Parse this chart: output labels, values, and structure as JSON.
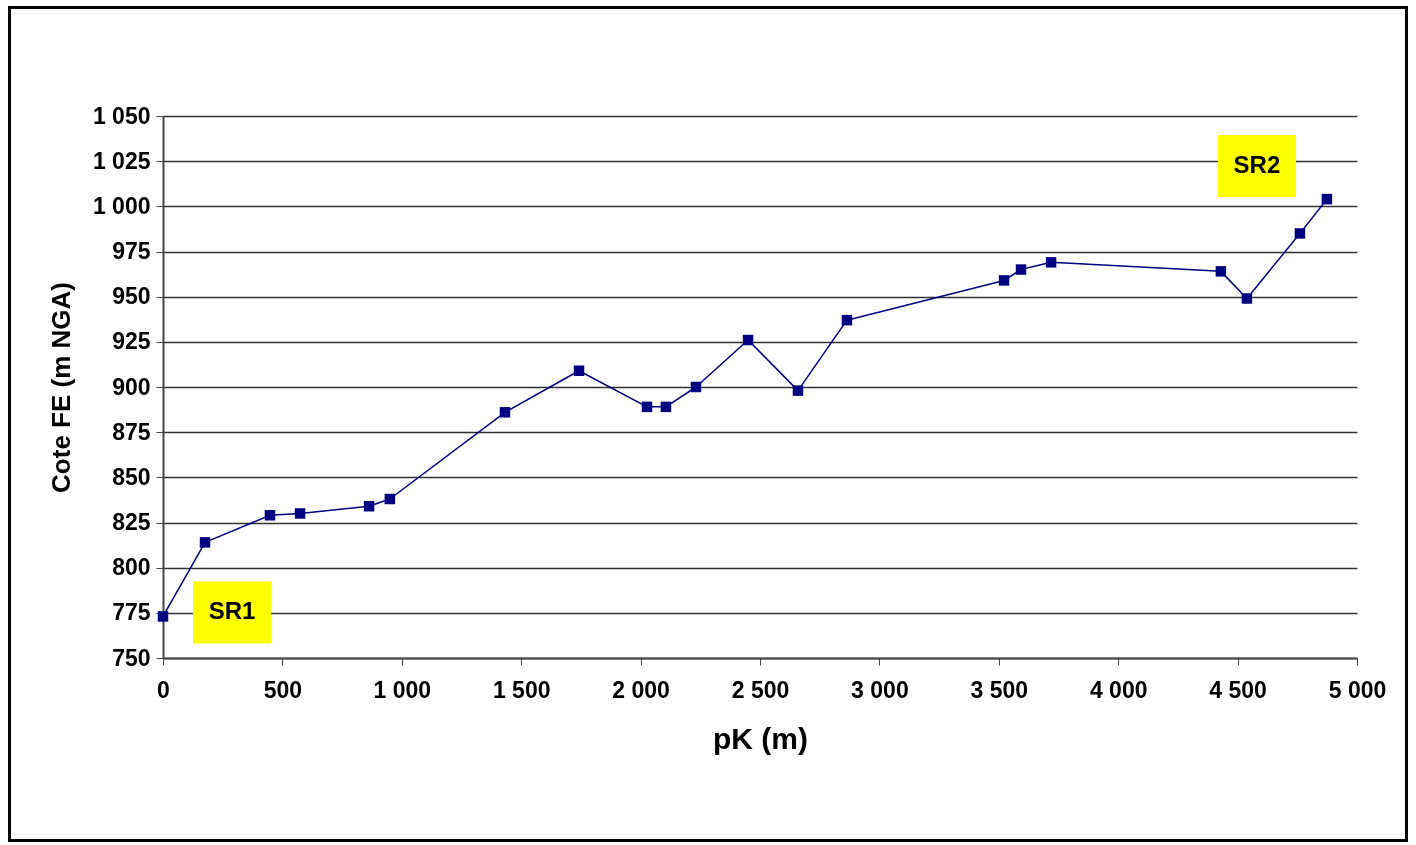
{
  "chart_data": {
    "type": "line",
    "xlabel": "pK (m)",
    "ylabel": "Cote FE  (m NGA)",
    "x": [
      0,
      176,
      448,
      574,
      863,
      950,
      1432,
      1742,
      2027,
      2106,
      2232,
      2450,
      2659,
      2864,
      3522,
      3593,
      3719,
      4430,
      4539,
      4761,
      4874
    ],
    "series": [
      {
        "color": "#000080",
        "values": [
          773,
          814,
          829,
          830,
          834,
          838,
          886,
          909,
          889,
          889,
          900,
          926,
          898,
          937,
          959,
          965,
          969,
          964,
          949,
          985,
          1004
        ]
      }
    ],
    "xlim": [
      0,
      5000
    ],
    "ylim": [
      750,
      1050
    ],
    "xticks": [
      0,
      500,
      {
        "value": 1000,
        "label": "1 000"
      },
      {
        "value": 1500,
        "label": "1 500"
      },
      {
        "value": 2000,
        "label": "2 000"
      },
      {
        "value": 2500,
        "label": "2 500"
      },
      {
        "value": 3000,
        "label": "3 000"
      },
      {
        "value": 3500,
        "label": "3 500"
      },
      {
        "value": 4000,
        "label": "4 000"
      },
      {
        "value": 4500,
        "label": "4 500"
      },
      {
        "value": 5000,
        "label": "5 000"
      }
    ],
    "yticks": [
      750,
      775,
      800,
      825,
      850,
      875,
      900,
      925,
      950,
      975,
      {
        "value": 1000,
        "label": "1 000"
      },
      {
        "value": 1025,
        "label": "1 025"
      },
      {
        "value": 1050,
        "label": "1 050"
      }
    ],
    "grid": "y",
    "marker": "square",
    "line_style": "solid",
    "annotations": [
      {
        "text": "SR1",
        "x": 0,
        "y": 773
      },
      {
        "text": "SR2",
        "x": 4874,
        "y": 1004
      }
    ]
  }
}
